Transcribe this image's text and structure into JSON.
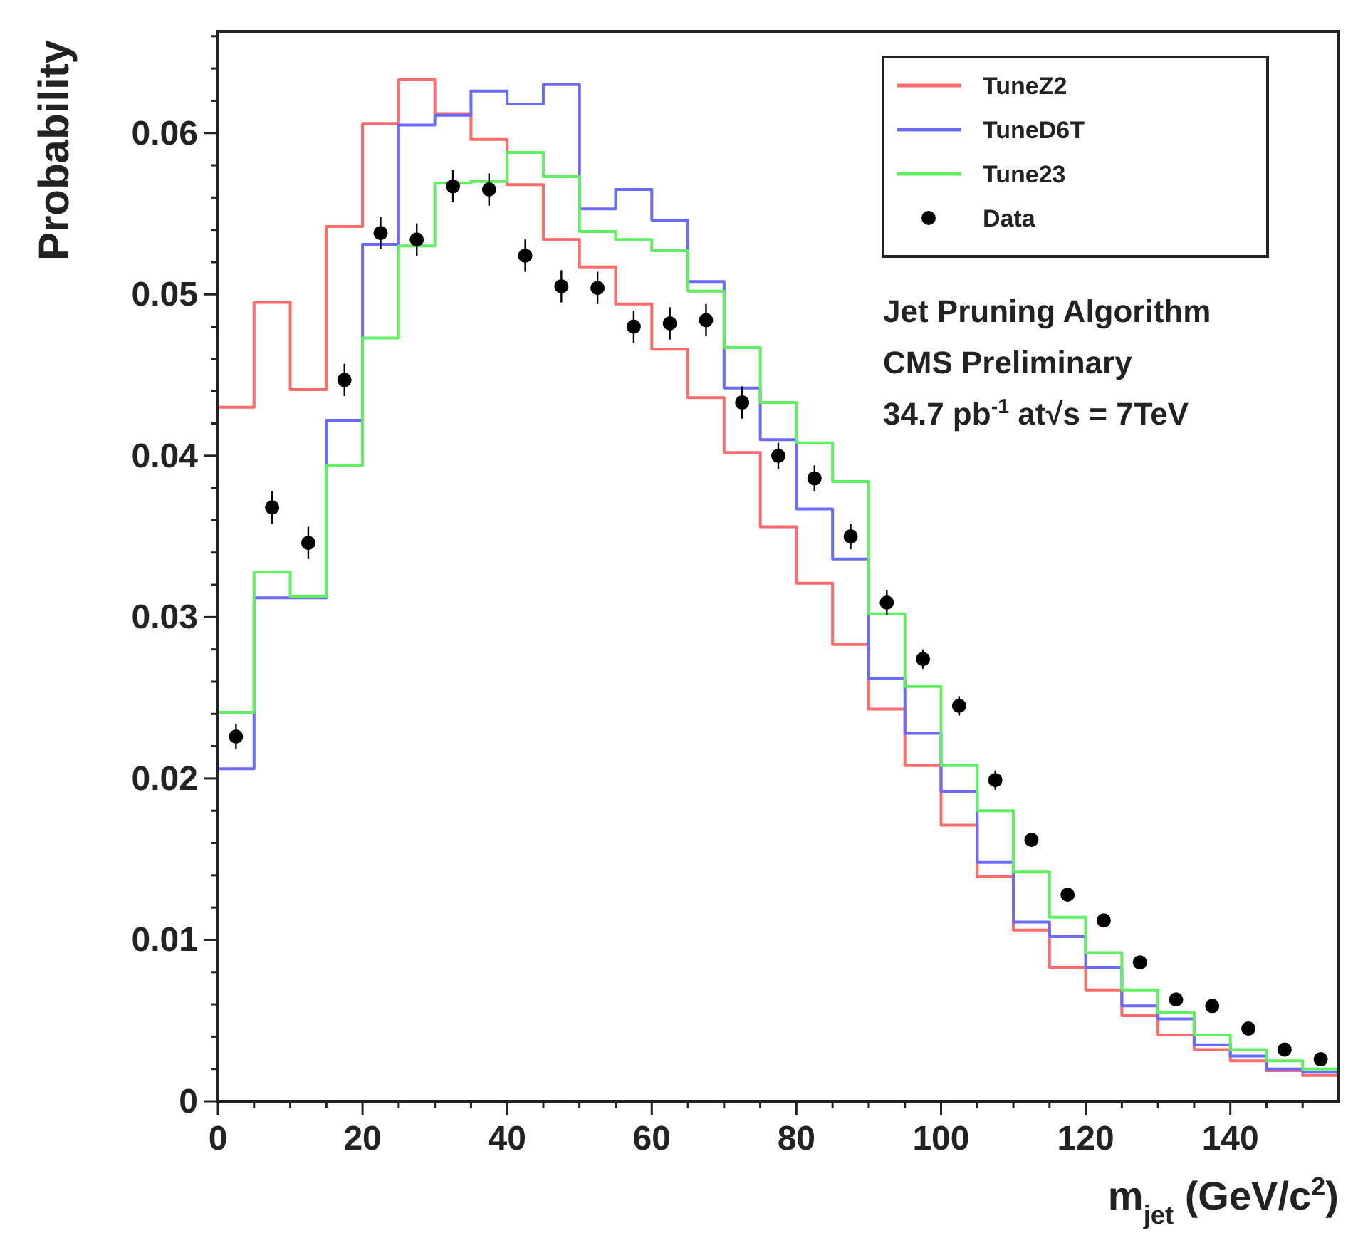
{
  "chart_data": {
    "type": "step",
    "xlabel": "m$_{jet}$ (GeV/c$^{2}$)",
    "ylabel": "Probability",
    "annotations": [
      "Jet Pruning Algorithm",
      "CMS Preliminary",
      "34.7 pb$^{-1}$ at√s = 7TeV"
    ],
    "x": [
      0,
      5,
      10,
      15,
      20,
      25,
      30,
      35,
      40,
      45,
      50,
      55,
      60,
      65,
      70,
      75,
      80,
      85,
      90,
      95,
      100,
      105,
      110,
      115,
      120,
      125,
      130,
      135,
      140,
      145,
      150,
      155
    ],
    "series": [
      {
        "name": "TuneZ2",
        "color": "#ff6a6a",
        "values": [
          0.043,
          0.0495,
          0.0441,
          0.0542,
          0.0606,
          0.0633,
          0.0612,
          0.0596,
          0.0568,
          0.0534,
          0.0517,
          0.0494,
          0.0466,
          0.0436,
          0.0402,
          0.0356,
          0.0321,
          0.0283,
          0.0243,
          0.0208,
          0.0171,
          0.0139,
          0.0106,
          0.0083,
          0.0069,
          0.0053,
          0.0041,
          0.0032,
          0.0025,
          0.0019,
          0.0016,
          0.0016
        ]
      },
      {
        "name": "TuneD6T",
        "color": "#6a6aff",
        "values": [
          0.0206,
          0.0312,
          0.0312,
          0.0422,
          0.0531,
          0.0605,
          0.0611,
          0.0626,
          0.0618,
          0.063,
          0.0553,
          0.0565,
          0.0546,
          0.0508,
          0.0442,
          0.041,
          0.0367,
          0.0336,
          0.0262,
          0.0228,
          0.0192,
          0.0148,
          0.0111,
          0.0102,
          0.0083,
          0.0059,
          0.0051,
          0.0035,
          0.0028,
          0.002,
          0.0018,
          0.0018
        ]
      },
      {
        "name": "Tune23",
        "color": "#5ef05e",
        "values": [
          0.0241,
          0.0328,
          0.0313,
          0.0394,
          0.0473,
          0.053,
          0.0569,
          0.057,
          0.0588,
          0.0573,
          0.0539,
          0.0534,
          0.0527,
          0.0502,
          0.0467,
          0.0433,
          0.0408,
          0.0384,
          0.0302,
          0.0257,
          0.0208,
          0.018,
          0.0142,
          0.0114,
          0.0092,
          0.0069,
          0.0055,
          0.0041,
          0.0032,
          0.0025,
          0.002,
          0.002
        ]
      },
      {
        "name": "Data",
        "type": "scatter",
        "color": "#000000",
        "marker": "circle",
        "x": [
          2.5,
          7.5,
          12.5,
          17.5,
          22.5,
          27.5,
          32.5,
          37.5,
          42.5,
          47.5,
          52.5,
          57.5,
          62.5,
          67.5,
          72.5,
          77.5,
          82.5,
          87.5,
          92.5,
          97.5,
          102.5,
          107.5,
          112.5,
          117.5,
          122.5,
          127.5,
          132.5,
          137.5,
          142.5,
          147.5,
          152.5
        ],
        "values": [
          0.0226,
          0.0368,
          0.0346,
          0.0447,
          0.0538,
          0.0534,
          0.0567,
          0.0565,
          0.0524,
          0.0505,
          0.0504,
          0.048,
          0.0482,
          0.0484,
          0.0433,
          0.04,
          0.0386,
          0.035,
          0.0309,
          0.0274,
          0.0245,
          0.0199,
          0.0162,
          0.0128,
          0.0112,
          0.0086,
          0.0063,
          0.0059,
          0.0045,
          0.0032,
          0.0026
        ],
        "errors": [
          0.0008,
          0.001,
          0.001,
          0.001,
          0.001,
          0.001,
          0.001,
          0.001,
          0.001,
          0.001,
          0.001,
          0.001,
          0.001,
          0.001,
          0.001,
          0.0008,
          0.0008,
          0.0008,
          0.0008,
          0.0006,
          0.0006,
          0.0006,
          0.0004,
          null,
          null,
          null,
          null,
          null,
          null,
          null,
          null
        ]
      }
    ],
    "xlim": [
      0,
      155
    ],
    "ylim": [
      0,
      0.0663
    ],
    "xticks": [
      0,
      {
        "value": 5,
        "label": null
      },
      {
        "value": 10,
        "label": null
      },
      {
        "value": 15,
        "label": null
      },
      20,
      {
        "value": 25,
        "label": null
      },
      {
        "value": 30,
        "label": null
      },
      {
        "value": 35,
        "label": null
      },
      40,
      {
        "value": 45,
        "label": null
      },
      {
        "value": 50,
        "label": null
      },
      {
        "value": 55,
        "label": null
      },
      60,
      {
        "value": 65,
        "label": null
      },
      {
        "value": 70,
        "label": null
      },
      {
        "value": 75,
        "label": null
      },
      80,
      {
        "value": 85,
        "label": null
      },
      {
        "value": 90,
        "label": null
      },
      {
        "value": 95,
        "label": null
      },
      100,
      {
        "value": 105,
        "label": null
      },
      {
        "value": 110,
        "label": null
      },
      {
        "value": 115,
        "label": null
      },
      120,
      {
        "value": 125,
        "label": null
      },
      {
        "value": 130,
        "label": null
      },
      {
        "value": 135,
        "label": null
      },
      140,
      {
        "value": 145,
        "label": null
      },
      {
        "value": 150,
        "label": null
      }
    ],
    "yticks": [
      0,
      {
        "value": 0.002,
        "label": null
      },
      {
        "value": 0.004,
        "label": null
      },
      {
        "value": 0.006,
        "label": null
      },
      {
        "value": 0.008,
        "label": null
      },
      0.01,
      {
        "value": 0.012,
        "label": null
      },
      {
        "value": 0.014,
        "label": null
      },
      {
        "value": 0.016,
        "label": null
      },
      {
        "value": 0.018,
        "label": null
      },
      0.02,
      {
        "value": 0.022,
        "label": null
      },
      {
        "value": 0.024,
        "label": null
      },
      {
        "value": 0.026,
        "label": null
      },
      {
        "value": 0.028,
        "label": null
      },
      0.03,
      {
        "value": 0.032,
        "label": null
      },
      {
        "value": 0.034,
        "label": null
      },
      {
        "value": 0.036,
        "label": null
      },
      {
        "value": 0.038,
        "label": null
      },
      0.04,
      {
        "value": 0.042,
        "label": null
      },
      {
        "value": 0.044,
        "label": null
      },
      {
        "value": 0.046,
        "label": null
      },
      {
        "value": 0.048,
        "label": null
      },
      0.05,
      {
        "value": 0.052,
        "label": null
      },
      {
        "value": 0.054,
        "label": null
      },
      {
        "value": 0.056,
        "label": null
      },
      {
        "value": 0.058,
        "label": null
      },
      0.06,
      {
        "value": 0.062,
        "label": null
      },
      {
        "value": 0.064,
        "label": null
      },
      {
        "value": 0.066,
        "label": null
      }
    ],
    "legend": "top right"
  }
}
